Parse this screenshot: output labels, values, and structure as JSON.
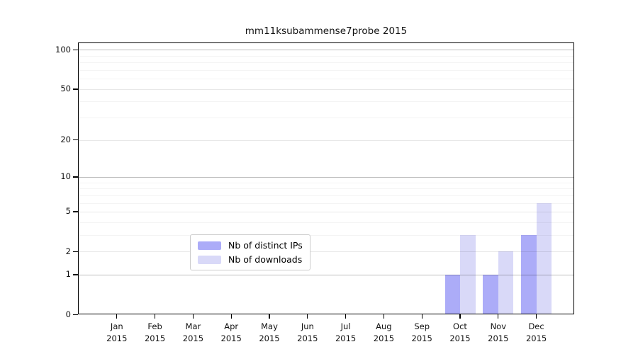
{
  "chart_data": {
    "type": "bar",
    "title": "mm11ksubammense7probe 2015",
    "year": "2015",
    "categories": [
      "Jan",
      "Feb",
      "Mar",
      "Apr",
      "May",
      "Jun",
      "Jul",
      "Aug",
      "Sep",
      "Oct",
      "Nov",
      "Dec"
    ],
    "series": [
      {
        "name": "Nb of distinct IPs",
        "color": "#acacf8",
        "values": [
          0,
          0,
          0,
          0,
          0,
          0,
          0,
          0,
          0,
          1,
          1,
          3
        ]
      },
      {
        "name": "Nb of downloads",
        "color": "#d9d9f8",
        "values": [
          0,
          0,
          0,
          0,
          0,
          0,
          0,
          0,
          0,
          3,
          2,
          6
        ]
      }
    ],
    "yscale": "log10(value+1)",
    "ylim": [
      0,
      113
    ],
    "y_tick_labels": [
      0,
      1,
      2,
      5,
      10,
      20,
      50,
      100
    ],
    "y_strong_gridlines": [
      1,
      10,
      100
    ],
    "y_minor_gridlines": [
      3,
      4,
      6,
      7,
      8,
      9,
      30,
      40,
      60,
      70,
      80,
      90
    ],
    "grid": "horizontal",
    "legend_position": "lower center inside plot",
    "axis_color": "#000000",
    "background_color": "#ffffff"
  }
}
